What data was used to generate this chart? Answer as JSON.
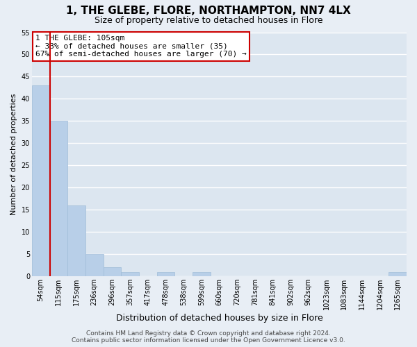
{
  "title": "1, THE GLEBE, FLORE, NORTHAMPTON, NN7 4LX",
  "subtitle": "Size of property relative to detached houses in Flore",
  "xlabel": "Distribution of detached houses by size in Flore",
  "ylabel": "Number of detached properties",
  "bin_labels": [
    "54sqm",
    "115sqm",
    "175sqm",
    "236sqm",
    "296sqm",
    "357sqm",
    "417sqm",
    "478sqm",
    "538sqm",
    "599sqm",
    "660sqm",
    "720sqm",
    "781sqm",
    "841sqm",
    "902sqm",
    "962sqm",
    "1023sqm",
    "1083sqm",
    "1144sqm",
    "1204sqm",
    "1265sqm"
  ],
  "bar_heights": [
    43,
    35,
    16,
    5,
    2,
    1,
    0,
    1,
    0,
    1,
    0,
    0,
    0,
    0,
    0,
    0,
    0,
    0,
    0,
    0,
    1
  ],
  "bar_color": "#b8cfe8",
  "bar_edge_color": "#a0bcd8",
  "highlight_line_color": "#cc0000",
  "ylim": [
    0,
    55
  ],
  "yticks": [
    0,
    5,
    10,
    15,
    20,
    25,
    30,
    35,
    40,
    45,
    50,
    55
  ],
  "annotation_title": "1 THE GLEBE: 105sqm",
  "annotation_line1": "← 33% of detached houses are smaller (35)",
  "annotation_line2": "67% of semi-detached houses are larger (70) →",
  "annotation_box_color": "#ffffff",
  "annotation_box_edge_color": "#cc0000",
  "footer_line1": "Contains HM Land Registry data © Crown copyright and database right 2024.",
  "footer_line2": "Contains public sector information licensed under the Open Government Licence v3.0.",
  "background_color": "#e8eef5",
  "plot_bg_color": "#dce6f0",
  "grid_color": "#ffffff",
  "title_fontsize": 11,
  "subtitle_fontsize": 9,
  "xlabel_fontsize": 9,
  "ylabel_fontsize": 8,
  "tick_fontsize": 7,
  "annotation_fontsize": 8,
  "footer_fontsize": 6.5
}
